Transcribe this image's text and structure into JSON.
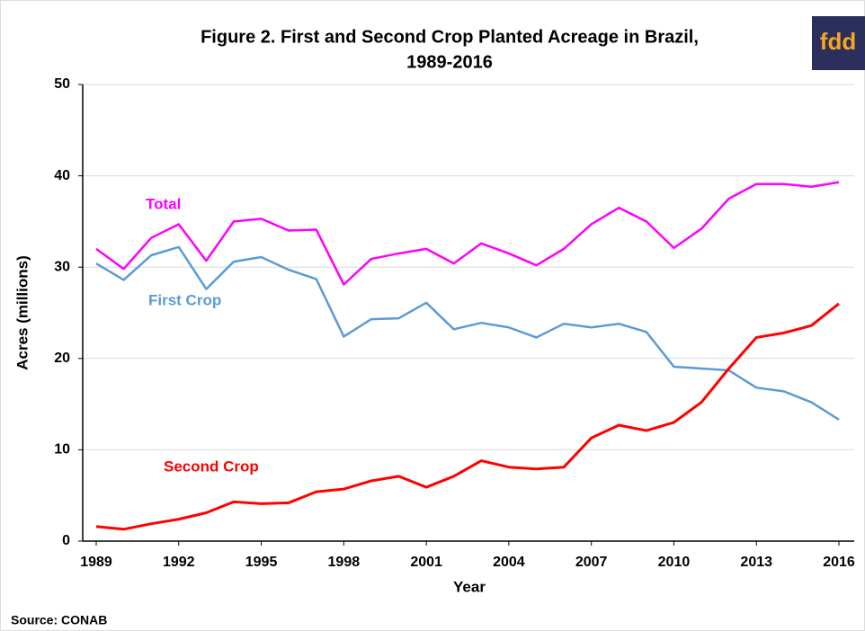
{
  "chart_data": {
    "type": "line",
    "title": [
      "Figure 2. First and Second Crop Planted Acreage in Brazil,",
      "1989-2016"
    ],
    "x_label": "Year",
    "y_label": "Acres (millions)",
    "source": "Source: CONAB",
    "logo": "fdd",
    "x": [
      1989,
      1990,
      1991,
      1992,
      1993,
      1994,
      1995,
      1996,
      1997,
      1998,
      1999,
      2000,
      2001,
      2002,
      2003,
      2004,
      2005,
      2006,
      2007,
      2008,
      2009,
      2010,
      2011,
      2012,
      2013,
      2014,
      2015,
      2016
    ],
    "series": [
      {
        "name": "Total",
        "color": "#ff00ff",
        "values": [
          32.0,
          29.8,
          33.2,
          34.7,
          30.7,
          35.0,
          35.3,
          34.0,
          34.1,
          28.1,
          30.9,
          31.5,
          32.0,
          30.4,
          32.6,
          31.5,
          30.2,
          32.0,
          34.7,
          36.5,
          35.0,
          32.1,
          34.2,
          37.5,
          39.1,
          39.1,
          38.8,
          39.3
        ]
      },
      {
        "name": "First Crop",
        "color": "#5b9bd5",
        "values": [
          30.4,
          28.6,
          31.3,
          32.2,
          27.6,
          30.6,
          31.1,
          29.7,
          28.7,
          22.4,
          24.3,
          24.4,
          26.1,
          23.2,
          23.9,
          23.4,
          22.3,
          23.8,
          23.4,
          23.8,
          22.9,
          19.1,
          18.9,
          18.7,
          16.8,
          16.4,
          15.2,
          13.3
        ]
      },
      {
        "name": "Second Crop",
        "color": "#ff0000",
        "values": [
          1.6,
          1.3,
          1.9,
          2.4,
          3.1,
          4.3,
          4.1,
          4.2,
          5.4,
          5.7,
          6.6,
          7.1,
          5.9,
          7.1,
          8.8,
          8.1,
          7.9,
          8.1,
          11.3,
          12.7,
          12.1,
          13.0,
          15.2,
          18.9,
          22.3,
          22.8,
          23.6,
          26.0
        ]
      }
    ],
    "xlim": [
      1989,
      2016
    ],
    "xticks": [
      1989,
      1992,
      1995,
      1998,
      2001,
      2004,
      2007,
      2010,
      2013,
      2016
    ],
    "ylim": [
      0,
      50
    ],
    "yticks": [
      0,
      10,
      20,
      30,
      40,
      50
    ],
    "grid": true
  }
}
